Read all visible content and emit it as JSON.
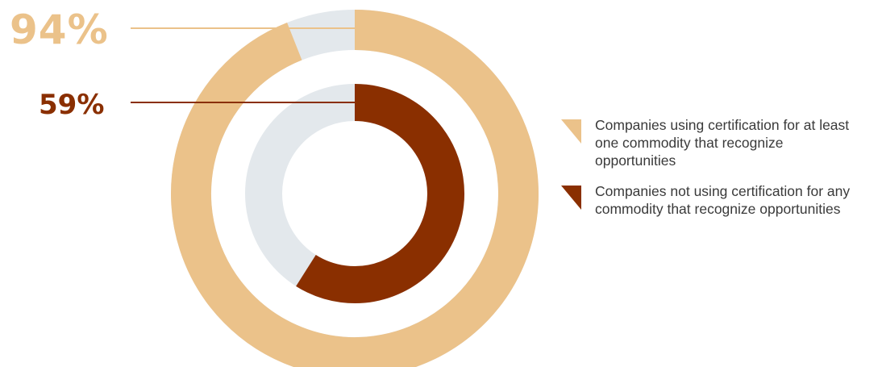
{
  "colors": {
    "outer": "#ebc28a",
    "inner": "#8a2f00",
    "track": "#e3e8ec"
  },
  "chart_data": {
    "type": "pie",
    "variant": "nested-donut",
    "series": [
      {
        "name": "Companies using certification for at least one commodity that recognize opportunities",
        "value": 94,
        "label": "94%",
        "ring": "outer"
      },
      {
        "name": "Companies not using certification for any commodity that recognize opportunities",
        "value": 59,
        "label": "59%",
        "ring": "inner"
      }
    ],
    "max": 100,
    "legend_position": "right"
  }
}
